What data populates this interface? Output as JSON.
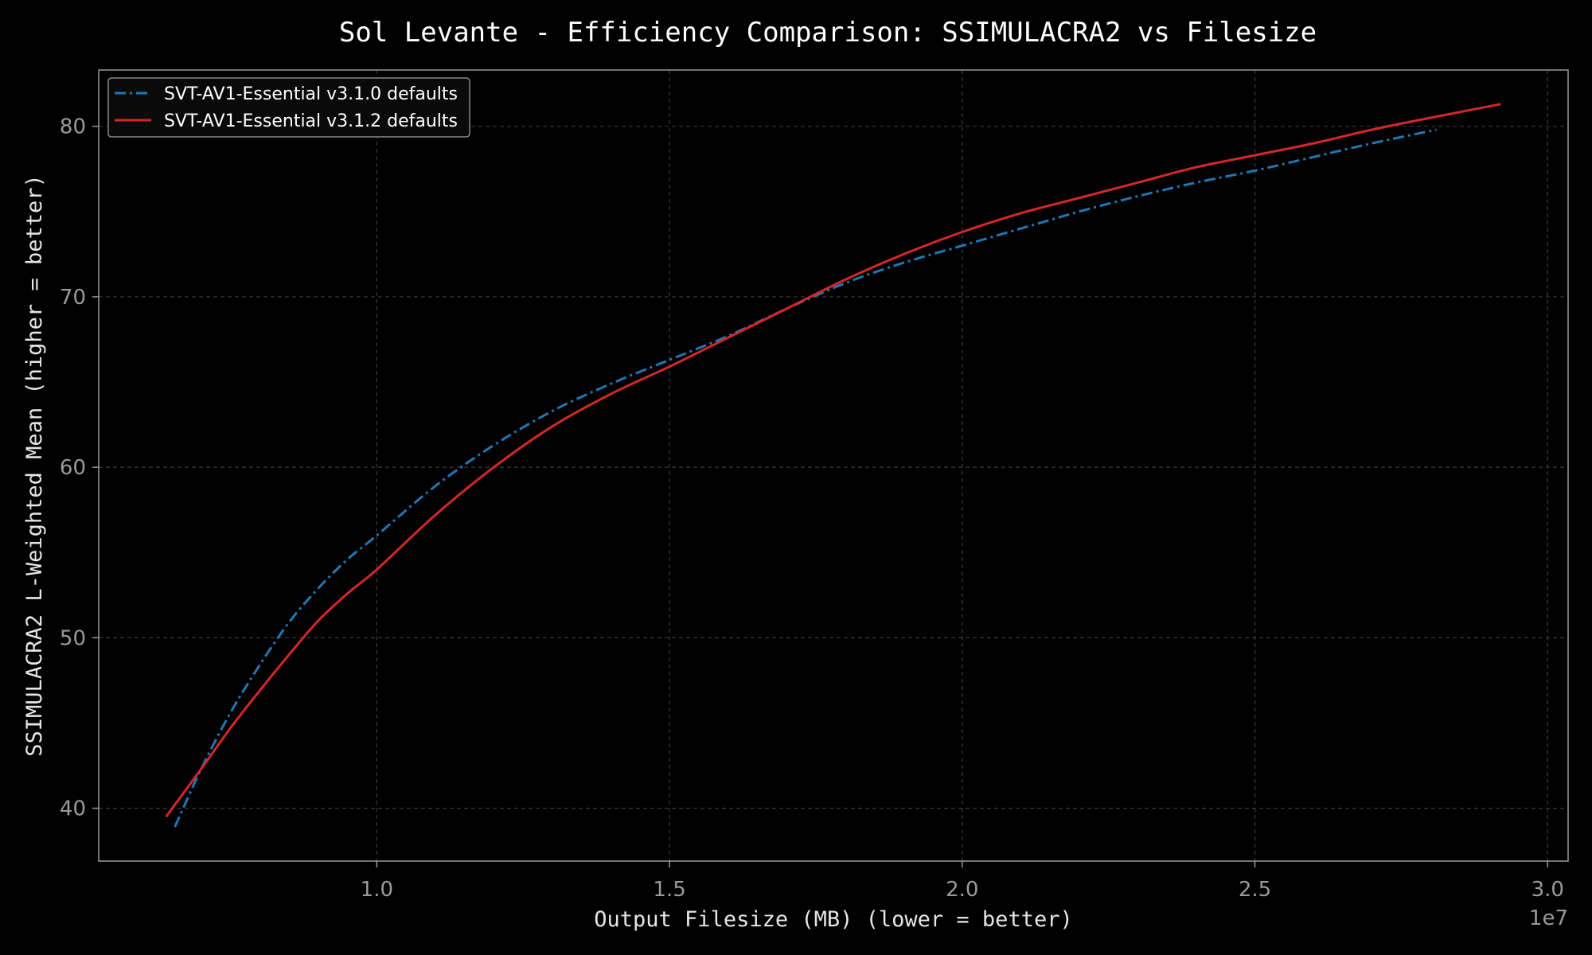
{
  "chart_data": {
    "type": "line",
    "title": "Sol Levante - Efficiency Comparison: SSIMULACRA2 vs Filesize",
    "xlabel": "Output Filesize (MB) (lower = better)",
    "ylabel": "SSIMULACRA2 L-Weighted Mean (higher = better)",
    "x_offset_text": "1e7",
    "xlim": [
      5.25,
      30.35
    ],
    "ylim": [
      36.9,
      83.3
    ],
    "xticks": [
      10,
      15,
      20,
      25,
      30
    ],
    "xtick_labels": [
      "1.0",
      "1.5",
      "2.0",
      "2.5",
      "3.0"
    ],
    "yticks": [
      40,
      50,
      60,
      70,
      80
    ],
    "ytick_labels": [
      "40",
      "50",
      "60",
      "70",
      "80"
    ],
    "grid": true,
    "legend_position": "top-left",
    "series": [
      {
        "name": "SVT-AV1-Essential v3.1.0 defaults",
        "color": "#1f77b4",
        "line_style": "dash-dot",
        "x": [
          6.55,
          7.0,
          7.5,
          8.0,
          8.5,
          9.0,
          9.5,
          10.0,
          11.0,
          12.0,
          13.0,
          14.0,
          15.0,
          16.0,
          17.0,
          18.0,
          19.0,
          20.0,
          21.0,
          22.0,
          23.0,
          24.0,
          25.0,
          26.0,
          27.0,
          28.1
        ],
        "y": [
          38.9,
          42.3,
          45.6,
          48.4,
          50.9,
          52.9,
          54.6,
          56.0,
          58.9,
          61.3,
          63.3,
          64.9,
          66.3,
          67.7,
          69.3,
          70.8,
          72.0,
          73.0,
          74.0,
          75.0,
          75.9,
          76.7,
          77.4,
          78.2,
          79.0,
          79.8
        ]
      },
      {
        "name": "SVT-AV1-Essential v3.1.2 defaults",
        "color": "#d62728",
        "line_style": "solid",
        "x": [
          6.4,
          7.0,
          7.5,
          8.0,
          8.5,
          9.0,
          9.5,
          10.0,
          11.0,
          12.0,
          13.0,
          14.0,
          15.0,
          16.0,
          17.0,
          18.0,
          19.0,
          20.0,
          21.0,
          22.0,
          23.0,
          24.0,
          25.0,
          26.0,
          27.0,
          28.0,
          29.2
        ],
        "y": [
          39.5,
          42.3,
          44.7,
          46.9,
          49.0,
          51.0,
          52.6,
          54.0,
          57.2,
          60.0,
          62.4,
          64.3,
          65.9,
          67.6,
          69.3,
          71.0,
          72.5,
          73.8,
          74.9,
          75.8,
          76.7,
          77.6,
          78.3,
          79.0,
          79.8,
          80.5,
          81.3
        ]
      }
    ]
  }
}
